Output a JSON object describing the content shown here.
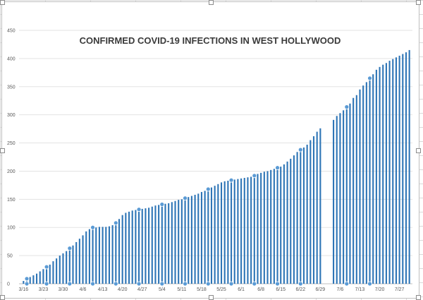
{
  "chart_data": {
    "type": "bar",
    "title": "CONFIRMED COVID-19 INFECTIONS IN WEST HOLLYWOOD",
    "xlabel": "",
    "ylabel": "",
    "ylim": [
      0,
      450
    ],
    "yticks": [
      0,
      50,
      100,
      150,
      200,
      250,
      300,
      350,
      400,
      450
    ],
    "grid": true,
    "legend": "none",
    "bar_color": "#2e75b6",
    "marker_color": "#5b9bd5",
    "start_date": "3/16",
    "x_tick_labels": [
      "3/16",
      "3/23",
      "3/30",
      "4/6",
      "4/13",
      "4/20",
      "4/27",
      "5/4",
      "5/11",
      "5/18",
      "5/25",
      "6/1",
      "6/8",
      "6/15",
      "6/22",
      "6/29",
      "7/6",
      "7/13",
      "7/20",
      "7/27"
    ],
    "values": [
      5,
      9,
      12,
      15,
      18,
      22,
      26,
      30,
      34,
      40,
      45,
      50,
      54,
      58,
      63,
      68,
      74,
      80,
      86,
      93,
      97,
      100,
      100,
      101,
      101,
      101,
      102,
      104,
      108,
      115,
      122,
      126,
      128,
      130,
      131,
      132,
      133,
      134,
      135,
      137,
      139,
      140,
      141,
      142,
      143,
      145,
      147,
      149,
      150,
      152,
      154,
      156,
      158,
      160,
      163,
      165,
      168,
      171,
      174,
      177,
      180,
      182,
      183,
      184,
      185,
      186,
      187,
      188,
      189,
      190,
      192,
      195,
      197,
      199,
      200,
      202,
      204,
      206,
      208,
      212,
      217,
      222,
      228,
      234,
      238,
      242,
      247,
      255,
      262,
      270,
      276,
      null,
      null,
      null,
      291,
      298,
      303,
      308,
      314,
      320,
      330,
      335,
      345,
      352,
      358,
      365,
      372,
      380,
      385,
      389,
      392,
      396,
      399,
      402,
      405,
      408,
      411,
      415
    ],
    "marker_indices": [
      1,
      7,
      14,
      21,
      28,
      35,
      42,
      49,
      56,
      63,
      70,
      77,
      84,
      98,
      105
    ]
  }
}
